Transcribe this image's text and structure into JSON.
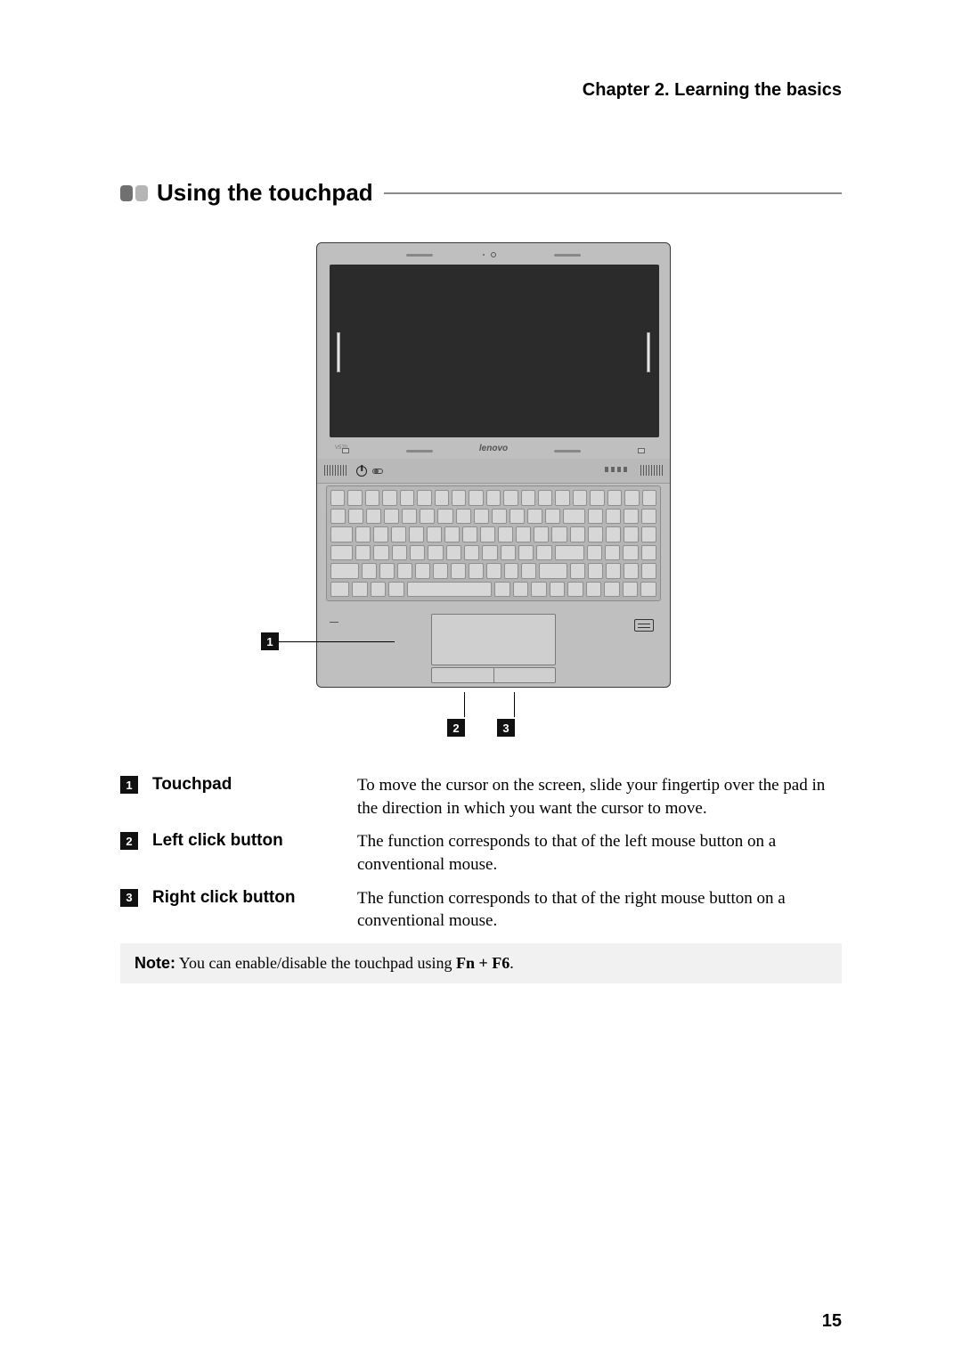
{
  "chapter_header": "Chapter 2. Learning the basics",
  "section_title": "Using the touchpad",
  "laptop": {
    "brand": "lenovo",
    "model": "V570"
  },
  "callouts": {
    "one": "1",
    "two": "2",
    "three": "3"
  },
  "definitions": [
    {
      "num": "1",
      "term": "Touchpad",
      "desc": "To move the cursor on the screen, slide your fingertip over the pad in the direction in which you want the cursor to move."
    },
    {
      "num": "2",
      "term": "Left click button",
      "desc": "The function corresponds to that of the left mouse button on a conventional mouse."
    },
    {
      "num": "3",
      "term": "Right click button",
      "desc": "The function corresponds to that of the right mouse button on a conventional mouse."
    }
  ],
  "note": {
    "label": "Note:",
    "text_before": "You can enable/disable the touchpad using ",
    "key_combo": "Fn + F6",
    "text_after": "."
  },
  "page_number": "15"
}
